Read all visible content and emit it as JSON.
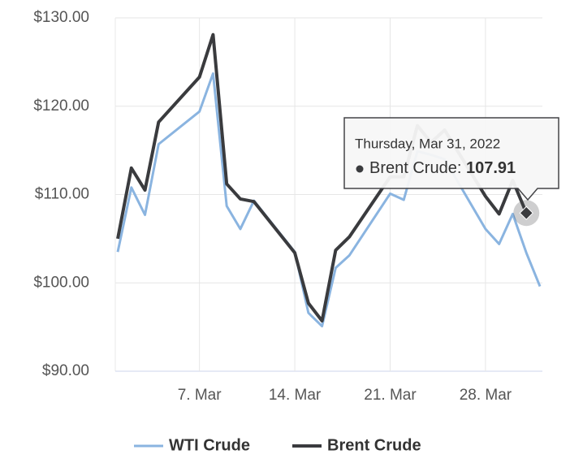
{
  "chart_data": {
    "type": "line",
    "x": [
      "2022-03-01",
      "2022-03-02",
      "2022-03-03",
      "2022-03-04",
      "2022-03-07",
      "2022-03-08",
      "2022-03-09",
      "2022-03-10",
      "2022-03-11",
      "2022-03-14",
      "2022-03-15",
      "2022-03-16",
      "2022-03-17",
      "2022-03-18",
      "2022-03-21",
      "2022-03-22",
      "2022-03-23",
      "2022-03-24",
      "2022-03-25",
      "2022-03-28",
      "2022-03-29",
      "2022-03-30",
      "2022-03-31",
      "2022-04-01"
    ],
    "series": [
      {
        "name": "WTI Crude",
        "color": "#8ab4e0",
        "values": [
          103.5,
          110.8,
          107.7,
          115.7,
          119.4,
          123.7,
          108.7,
          106.1,
          109.3,
          103.5,
          96.6,
          95.1,
          101.7,
          103.1,
          110.1,
          109.4,
          114.9,
          114.5,
          114.0,
          106.1,
          104.4,
          107.8,
          103.4,
          99.6
        ]
      },
      {
        "name": "Brent Crude",
        "color": "#3a3b3e",
        "values": [
          105.0,
          113.0,
          110.5,
          118.2,
          123.3,
          128.1,
          111.2,
          109.5,
          109.2,
          103.4,
          97.7,
          95.7,
          103.7,
          105.2,
          112.0,
          112.0,
          117.8,
          115.9,
          117.3,
          109.8,
          107.8,
          111.6,
          107.91,
          null
        ]
      }
    ],
    "xlim": [
      "2022-03-01",
      "2022-04-01"
    ],
    "xticks": [
      {
        "value": "2022-03-07",
        "label": "7. Mar"
      },
      {
        "value": "2022-03-14",
        "label": "14. Mar"
      },
      {
        "value": "2022-03-21",
        "label": "21. Mar"
      },
      {
        "value": "2022-03-28",
        "label": "28. Mar"
      }
    ],
    "ylim": [
      90,
      130
    ],
    "yticks": [
      {
        "value": 90,
        "label": "$90.00"
      },
      {
        "value": 100,
        "label": "$100.00"
      },
      {
        "value": 110,
        "label": "$110.00"
      },
      {
        "value": 120,
        "label": "$120.00"
      },
      {
        "value": 130,
        "label": "$130.00"
      }
    ],
    "grid": true,
    "legend": "bottom",
    "tooltip": {
      "date": "Thursday, Mar 31, 2022",
      "label": "Brent Crude:"
    }
  }
}
